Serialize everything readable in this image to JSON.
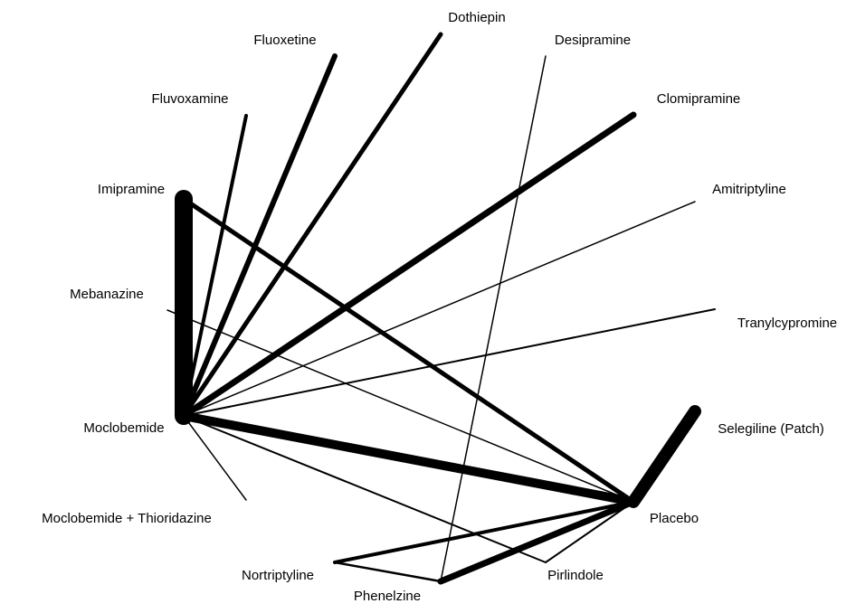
{
  "nodes": [
    {
      "label": "Dothiepin"
    },
    {
      "label": "Fluoxetine"
    },
    {
      "label": "Desipramine"
    },
    {
      "label": "Fluvoxamine"
    },
    {
      "label": "Clomipramine"
    },
    {
      "label": "Imipramine"
    },
    {
      "label": "Amitriptyline"
    },
    {
      "label": "Mebanazine"
    },
    {
      "label": "Tranylcypromine"
    },
    {
      "label": "Moclobemide"
    },
    {
      "label": "Selegiline (Patch)"
    },
    {
      "label": "Moclobemide + Thioridazine"
    },
    {
      "label": "Placebo"
    },
    {
      "label": "Nortriptyline"
    },
    {
      "label": "Pirlindole"
    },
    {
      "label": "Phenelzine"
    }
  ]
}
